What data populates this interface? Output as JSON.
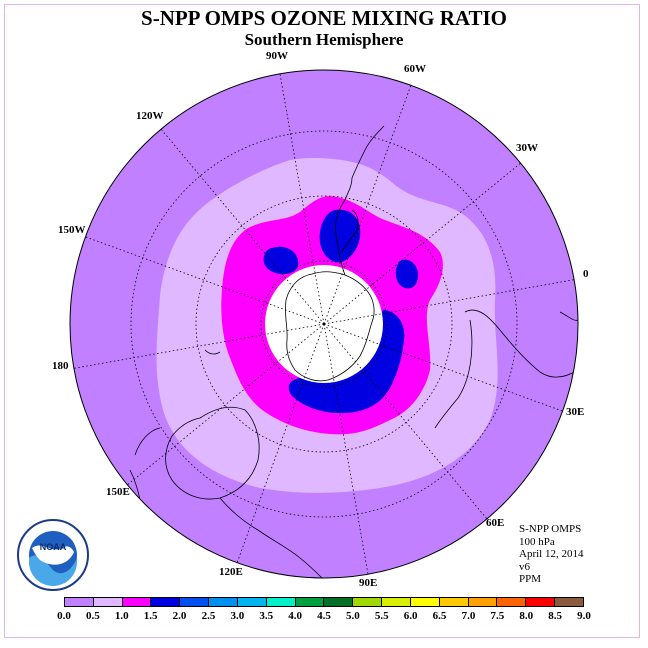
{
  "title": "S-NPP OMPS OZONE MIXING RATIO",
  "subtitle": "Southern Hemisphere",
  "longitude_labels": {
    "lon_90w": "90W",
    "lon_60w": "60W",
    "lon_30w": "30W",
    "lon_0": "0",
    "lon_30e": "30E",
    "lon_60e": "60E",
    "lon_90e": "90E",
    "lon_120e": "120E",
    "lon_150e": "150E",
    "lon_180": "180",
    "lon_150w": "150W",
    "lon_120w": "120W"
  },
  "info": {
    "instrument": "S-NPP OMPS",
    "level": "100 hPa",
    "date": "April 12, 2014",
    "version": "v6",
    "units": "PPM"
  },
  "logo_text": "NOAA",
  "colorbar": {
    "labels": [
      "0.0",
      "0.5",
      "1.0",
      "1.5",
      "2.0",
      "2.5",
      "3.0",
      "3.5",
      "4.0",
      "4.5",
      "5.0",
      "5.5",
      "6.0",
      "6.5",
      "7.0",
      "7.5",
      "8.0",
      "8.5",
      "9.0"
    ],
    "colors": [
      "#c080ff",
      "#e0b8ff",
      "#ff00ff",
      "#0000e0",
      "#0050f0",
      "#0090f0",
      "#00b4f0",
      "#00f0c8",
      "#00a040",
      "#007028",
      "#a0d800",
      "#d8f000",
      "#ffff00",
      "#ffc800",
      "#ffa000",
      "#ff6400",
      "#ff0000",
      "#8b5a3c"
    ]
  },
  "map_colors": {
    "background_band": "#c080ff",
    "band_0_5_1_0": "#e0b8ff",
    "band_1_0_1_5": "#ff00ff",
    "band_1_5_2_0": "#0000e0",
    "polar_night": "#ffffff"
  }
}
